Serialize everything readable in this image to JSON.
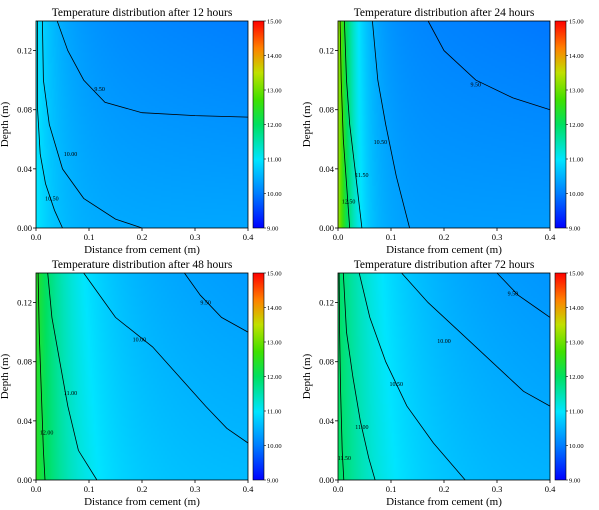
{
  "chart_data": [
    {
      "type": "heatmap",
      "title": "Temperature distribution after 12 hours",
      "xlabel": "Distance from cement (m)",
      "ylabel": "Depth (m)",
      "xlim": [
        0.0,
        0.4
      ],
      "ylim": [
        0.0,
        0.14
      ],
      "xticks": [
        "0.0",
        "0.1",
        "0.2",
        "0.3",
        "0.4"
      ],
      "yticks": [
        "0.00",
        "0.04",
        "0.08",
        "0.12"
      ],
      "colorbar": {
        "min": 9.0,
        "max": 15.0,
        "ticks": [
          "15.00",
          "14.00",
          "13.00",
          "12.00",
          "11.00",
          "10.00",
          "9.00"
        ]
      },
      "field": {
        "t_base": 10.4,
        "t_peak": 11.0,
        "decay_x": 0.045,
        "depth_slope": 2.2,
        "floor": 9.0
      },
      "contours": [
        {
          "label": "9.50",
          "points": [
            [
              0.04,
              0.14
            ],
            [
              0.06,
              0.12
            ],
            [
              0.09,
              0.1
            ],
            [
              0.13,
              0.085
            ],
            [
              0.2,
              0.078
            ],
            [
              0.3,
              0.076
            ],
            [
              0.4,
              0.075
            ]
          ]
        },
        {
          "label": "10.00",
          "points": [
            [
              0.012,
              0.14
            ],
            [
              0.014,
              0.1
            ],
            [
              0.025,
              0.07
            ],
            [
              0.05,
              0.04
            ],
            [
              0.09,
              0.02
            ],
            [
              0.15,
              0.006
            ],
            [
              0.2,
              0.0
            ]
          ]
        },
        {
          "label": "10.50",
          "points": [
            [
              0.003,
              0.14
            ],
            [
              0.003,
              0.08
            ],
            [
              0.008,
              0.05
            ],
            [
              0.018,
              0.03
            ],
            [
              0.035,
              0.012
            ],
            [
              0.05,
              0.0
            ]
          ]
        }
      ],
      "label_positions": [
        [
          0.12,
          0.094
        ],
        [
          0.065,
          0.05
        ],
        [
          0.03,
          0.02
        ]
      ]
    },
    {
      "type": "heatmap",
      "title": "Temperature distribution after 24 hours",
      "xlabel": "Distance from cement (m)",
      "ylabel": "Depth (m)",
      "xlim": [
        0.0,
        0.4
      ],
      "ylim": [
        0.0,
        0.14
      ],
      "xticks": [
        "0.0",
        "0.1",
        "0.2",
        "0.3",
        "0.4"
      ],
      "yticks": [
        "0.00",
        "0.04",
        "0.08",
        "0.12"
      ],
      "colorbar": {
        "min": 9.0,
        "max": 15.0,
        "ticks": [
          "15.00",
          "14.00",
          "13.00",
          "12.00",
          "11.00",
          "10.00",
          "9.00"
        ]
      },
      "field": {
        "t_base": 10.3,
        "t_peak": 13.2,
        "decay_x": 0.03,
        "depth_slope": 1.8,
        "floor": 9.1
      },
      "contours": [
        {
          "label": "9.50",
          "points": [
            [
              0.17,
              0.14
            ],
            [
              0.2,
              0.12
            ],
            [
              0.26,
              0.1
            ],
            [
              0.33,
              0.088
            ],
            [
              0.4,
              0.08
            ]
          ]
        },
        {
          "label": "10.50",
          "points": [
            [
              0.065,
              0.14
            ],
            [
              0.075,
              0.1
            ],
            [
              0.09,
              0.07
            ],
            [
              0.11,
              0.035
            ],
            [
              0.135,
              0.0
            ]
          ]
        },
        {
          "label": "11.50",
          "points": [
            [
              0.012,
              0.14
            ],
            [
              0.016,
              0.1
            ],
            [
              0.022,
              0.07
            ],
            [
              0.032,
              0.04
            ],
            [
              0.045,
              0.0
            ]
          ]
        },
        {
          "label": "12.50",
          "points": [
            [
              0.004,
              0.14
            ],
            [
              0.006,
              0.1
            ],
            [
              0.01,
              0.06
            ],
            [
              0.016,
              0.03
            ],
            [
              0.022,
              0.0
            ]
          ]
        }
      ],
      "label_positions": [
        [
          0.26,
          0.097
        ],
        [
          0.08,
          0.058
        ],
        [
          0.045,
          0.036
        ],
        [
          0.02,
          0.018
        ]
      ]
    },
    {
      "type": "heatmap",
      "title": "Temperature distribution after 48 hours",
      "xlabel": "Distance from cement (m)",
      "ylabel": "Depth (m)",
      "xlim": [
        0.0,
        0.4
      ],
      "ylim": [
        0.0,
        0.14
      ],
      "xticks": [
        "0.0",
        "0.1",
        "0.2",
        "0.3",
        "0.4"
      ],
      "yticks": [
        "0.00",
        "0.04",
        "0.08",
        "0.12"
      ],
      "colorbar": {
        "min": 9.0,
        "max": 15.0,
        "ticks": [
          "15.00",
          "14.00",
          "13.00",
          "12.00",
          "11.00",
          "10.00",
          "9.00"
        ]
      },
      "field": {
        "t_base": 10.6,
        "t_peak": 12.4,
        "decay_x": 0.08,
        "depth_slope": 1.6,
        "floor": 9.2
      },
      "contours": [
        {
          "label": "9.50",
          "points": [
            [
              0.28,
              0.14
            ],
            [
              0.31,
              0.125
            ],
            [
              0.35,
              0.11
            ],
            [
              0.4,
              0.1
            ]
          ]
        },
        {
          "label": "10.00",
          "points": [
            [
              0.09,
              0.14
            ],
            [
              0.15,
              0.11
            ],
            [
              0.22,
              0.09
            ],
            [
              0.27,
              0.07
            ],
            [
              0.32,
              0.05
            ],
            [
              0.36,
              0.035
            ],
            [
              0.4,
              0.025
            ]
          ]
        },
        {
          "label": "11.00",
          "points": [
            [
              0.022,
              0.14
            ],
            [
              0.03,
              0.11
            ],
            [
              0.045,
              0.08
            ],
            [
              0.06,
              0.05
            ],
            [
              0.08,
              0.02
            ],
            [
              0.115,
              0.0
            ]
          ]
        },
        {
          "label": "12.00",
          "points": [
            [
              0.004,
              0.14
            ],
            [
              0.006,
              0.1
            ],
            [
              0.01,
              0.06
            ],
            [
              0.014,
              0.02
            ],
            [
              0.017,
              0.0
            ]
          ]
        }
      ],
      "label_positions": [
        [
          0.32,
          0.12
        ],
        [
          0.195,
          0.095
        ],
        [
          0.065,
          0.059
        ],
        [
          0.02,
          0.032
        ]
      ]
    },
    {
      "type": "heatmap",
      "title": "Temperature distribution after 72 hours",
      "xlabel": "Distance from cement (m)",
      "ylabel": "Depth (m)",
      "xlim": [
        0.0,
        0.4
      ],
      "ylim": [
        0.0,
        0.14
      ],
      "xticks": [
        "0.0",
        "0.1",
        "0.2",
        "0.3",
        "0.4"
      ],
      "yticks": [
        "0.00",
        "0.04",
        "0.08",
        "0.12"
      ],
      "colorbar": {
        "min": 9.0,
        "max": 15.0,
        "ticks": [
          "15.00",
          "14.00",
          "13.00",
          "12.00",
          "11.00",
          "10.00",
          "9.00"
        ]
      },
      "field": {
        "t_base": 10.5,
        "t_peak": 12.0,
        "decay_x": 0.1,
        "depth_slope": 1.4,
        "floor": 9.3
      },
      "contours": [
        {
          "label": "9.50",
          "points": [
            [
              0.3,
              0.14
            ],
            [
              0.34,
              0.125
            ],
            [
              0.38,
              0.115
            ],
            [
              0.4,
              0.11
            ]
          ]
        },
        {
          "label": "10.00",
          "points": [
            [
              0.12,
              0.14
            ],
            [
              0.17,
              0.12
            ],
            [
              0.23,
              0.1
            ],
            [
              0.29,
              0.08
            ],
            [
              0.35,
              0.06
            ],
            [
              0.4,
              0.05
            ]
          ]
        },
        {
          "label": "10.50",
          "points": [
            [
              0.04,
              0.14
            ],
            [
              0.06,
              0.11
            ],
            [
              0.09,
              0.08
            ],
            [
              0.13,
              0.05
            ],
            [
              0.18,
              0.025
            ],
            [
              0.24,
              0.0
            ]
          ]
        },
        {
          "label": "11.00",
          "points": [
            [
              0.01,
              0.14
            ],
            [
              0.016,
              0.1
            ],
            [
              0.028,
              0.07
            ],
            [
              0.042,
              0.04
            ],
            [
              0.058,
              0.015
            ],
            [
              0.07,
              0.0
            ]
          ]
        },
        {
          "label": "11.50",
          "points": [
            [
              0.002,
              0.14
            ],
            [
              0.003,
              0.1
            ],
            [
              0.005,
              0.06
            ],
            [
              0.008,
              0.02
            ],
            [
              0.011,
              0.0
            ]
          ]
        }
      ],
      "label_positions": [
        [
          0.33,
          0.126
        ],
        [
          0.2,
          0.094
        ],
        [
          0.11,
          0.065
        ],
        [
          0.045,
          0.036
        ],
        [
          0.012,
          0.015
        ]
      ]
    }
  ]
}
